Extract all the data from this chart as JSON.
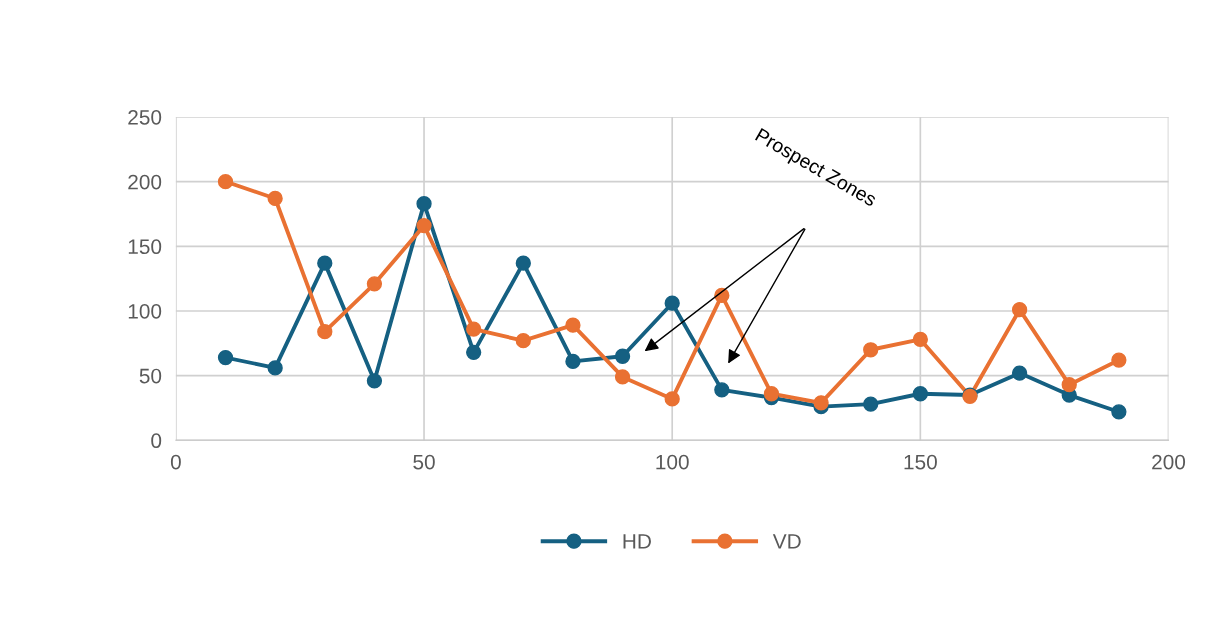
{
  "chart_data": {
    "type": "line",
    "x": [
      10,
      20,
      30,
      40,
      50,
      60,
      70,
      80,
      90,
      100,
      110,
      120,
      130,
      140,
      150,
      160,
      170,
      180,
      190
    ],
    "series": [
      {
        "name": "HD",
        "color": "#156082",
        "values": [
          64,
          56,
          137,
          46,
          183,
          68,
          137,
          61,
          65,
          106,
          39,
          33,
          26,
          28,
          36,
          35,
          52,
          35,
          22
        ]
      },
      {
        "name": "VD",
        "color": "#e97132",
        "values": [
          200,
          187,
          84,
          121,
          166,
          86,
          77,
          89,
          49,
          32,
          112,
          36,
          29,
          70,
          78,
          34,
          101,
          43,
          62
        ]
      }
    ],
    "xlim": [
      0,
      200
    ],
    "xticks": [
      0,
      50,
      100,
      150,
      200
    ],
    "ylim": [
      0,
      250
    ],
    "yticks": [
      0,
      50,
      100,
      150,
      200,
      250
    ],
    "annotations": [
      "Prospect Zones"
    ],
    "grid": true,
    "legend": "bottom",
    "marker": "circle",
    "line_style": "solid"
  }
}
